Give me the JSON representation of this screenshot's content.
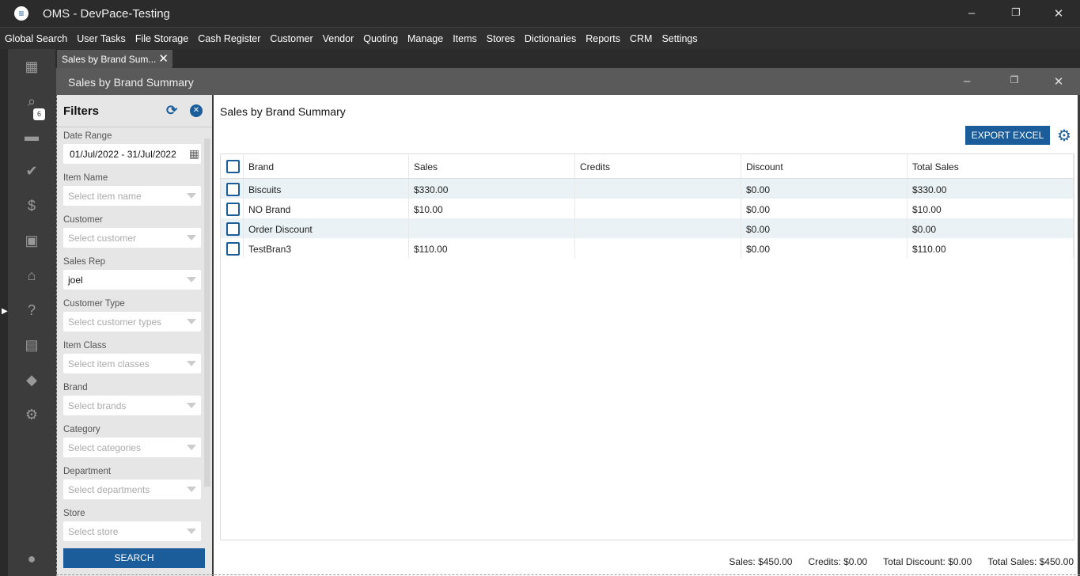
{
  "app": {
    "title": "OMS - DevPace-Testing"
  },
  "menu": [
    "Global Search",
    "User Tasks",
    "File Storage",
    "Cash Register",
    "Customer",
    "Vendor",
    "Quoting",
    "Manage",
    "Items",
    "Stores",
    "Dictionaries",
    "Reports",
    "CRM",
    "Settings"
  ],
  "rail": {
    "task_badge": "6",
    "icons": [
      "dashboard-icon",
      "search-icon",
      "folder-icon",
      "tasks-icon",
      "dollar-icon",
      "contact-icon",
      "store-icon",
      "help-clipboard-icon",
      "clipboard-icon",
      "tag-icon",
      "settings-icon",
      "user-icon"
    ]
  },
  "tab": {
    "label": "Sales by Brand Sum..."
  },
  "window": {
    "title": "Sales by Brand Summary"
  },
  "filters": {
    "title": "Filters",
    "fields": [
      {
        "label": "Date Range",
        "value": "01/Jul/2022 - 31/Jul/2022"
      },
      {
        "label": "Item Name",
        "placeholder": "Select item name"
      },
      {
        "label": "Customer",
        "placeholder": "Select customer"
      },
      {
        "label": "Sales Rep",
        "value": "joel"
      },
      {
        "label": "Customer Type",
        "placeholder": "Select customer types"
      },
      {
        "label": "Item Class",
        "placeholder": "Select item classes"
      },
      {
        "label": "Brand",
        "placeholder": "Select brands"
      },
      {
        "label": "Category",
        "placeholder": "Select categories"
      },
      {
        "label": "Department",
        "placeholder": "Select departments"
      },
      {
        "label": "Store",
        "placeholder": "Select store"
      }
    ],
    "search_label": "SEARCH"
  },
  "main": {
    "title": "Sales by Brand Summary",
    "export_label": "EXPORT EXCEL",
    "columns": [
      "Brand",
      "Sales",
      "Credits",
      "Discount",
      "Total Sales"
    ],
    "rows": [
      [
        "Biscuits",
        "$330.00",
        "",
        "$0.00",
        "$330.00"
      ],
      [
        "NO Brand",
        "$10.00",
        "",
        "$0.00",
        "$10.00"
      ],
      [
        "Order Discount",
        "",
        "",
        "$0.00",
        "$0.00"
      ],
      [
        "TestBran3",
        "$110.00",
        "",
        "$0.00",
        "$110.00"
      ]
    ],
    "totals": [
      "Sales: $450.00",
      "Credits: $0.00",
      "Total Discount: $0.00",
      "Total Sales: $450.00"
    ]
  },
  "colors": {
    "accent": "#1a5d9a",
    "row_alt": "#eaf2f6"
  }
}
